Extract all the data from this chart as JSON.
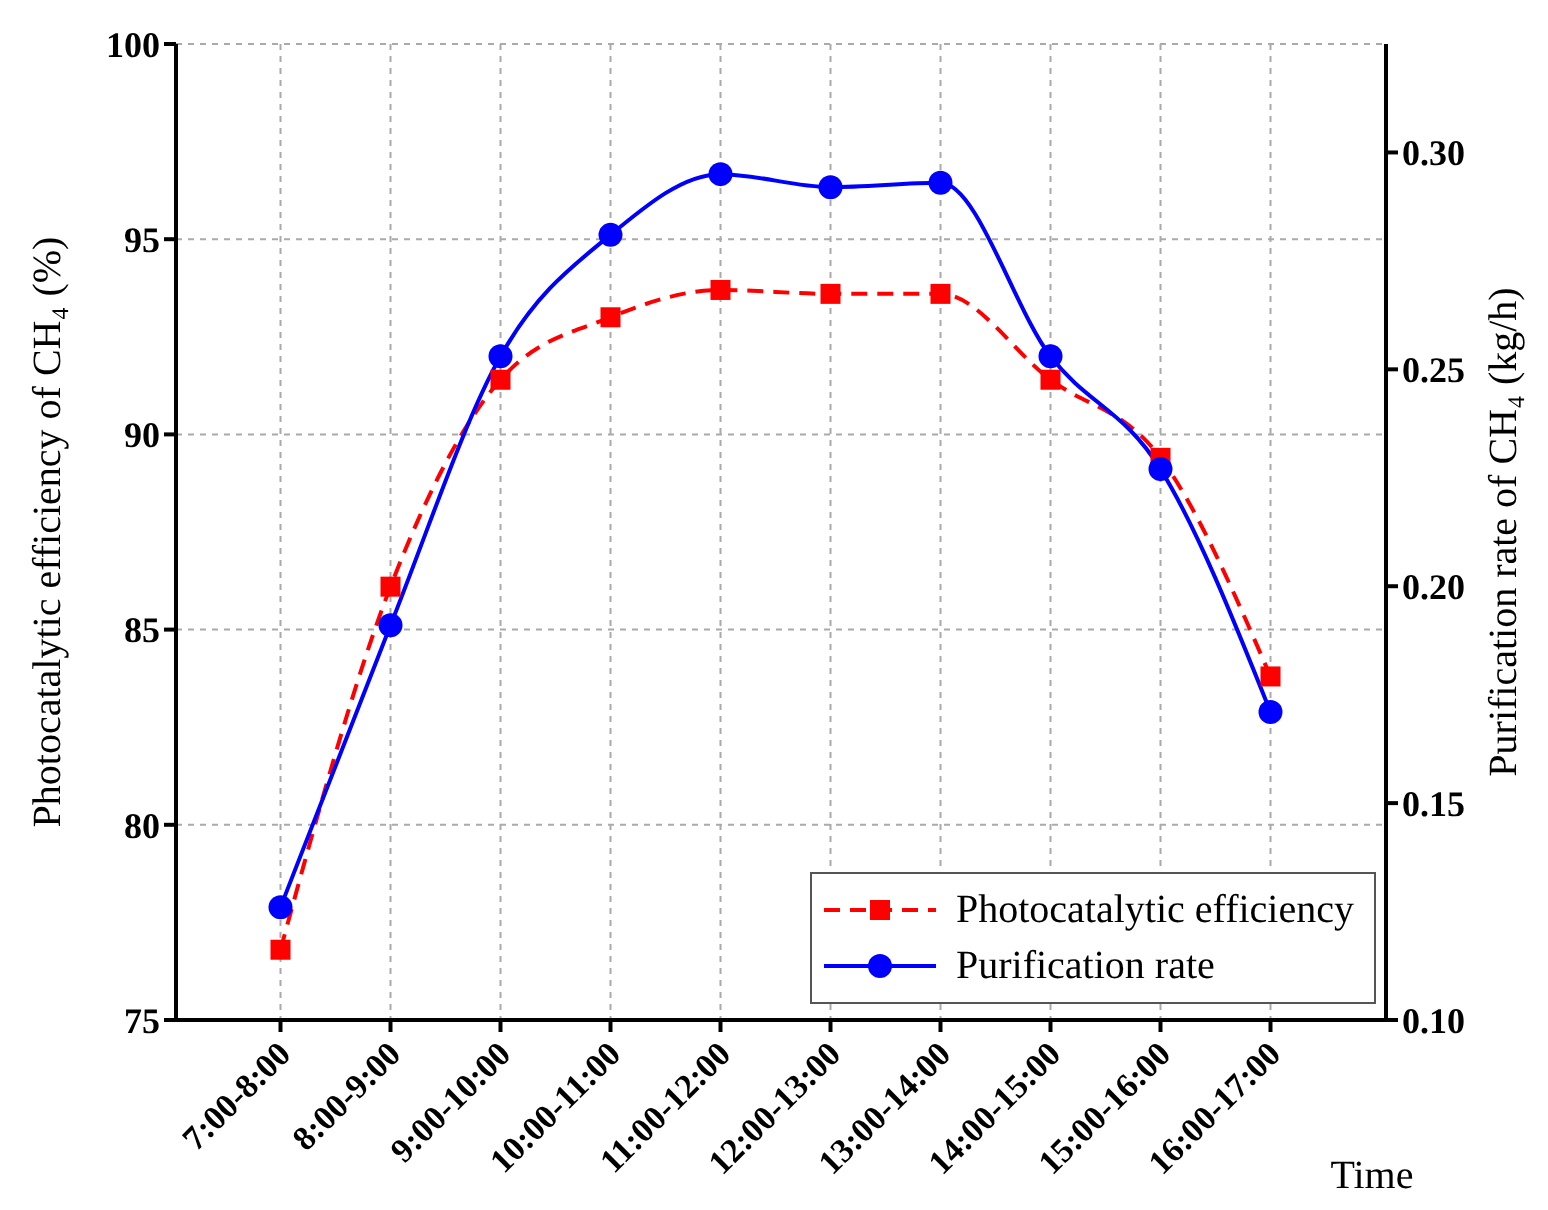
{
  "chart_data": {
    "type": "line",
    "xlabel": "Time",
    "ylabel": "Photocatalytic efficiency of CH₄ (%)",
    "y2label": "Purification rate of CH₄ (kg/h)",
    "categories": [
      "7:00-8:00",
      "8:00-9:00",
      "9:00-10:00",
      "10:00-11:00",
      "11:00-12:00",
      "12:00-13:00",
      "13:00-14:00",
      "14:00-15:00",
      "15:00-16:00",
      "16:00-17:00"
    ],
    "series": [
      {
        "name": "Photocatalytic efficiency",
        "color": "#ff0000",
        "marker": "square",
        "line_style": "dashed",
        "values": [
          76.8,
          86.1,
          91.4,
          93.0,
          93.7,
          93.6,
          93.6,
          91.4,
          89.4,
          83.8
        ]
      },
      {
        "name": "Purification rate",
        "color": "#0000ff",
        "marker": "circle",
        "line_style": "solid",
        "axis": "y2",
        "values": [
          0.126,
          0.191,
          0.253,
          0.281,
          0.295,
          0.292,
          0.293,
          0.253,
          0.227,
          0.171
        ]
      }
    ],
    "ylim": [
      75,
      100
    ],
    "yticks": [
      75,
      80,
      85,
      90,
      95,
      100
    ],
    "y2lim": [
      0.1,
      0.325
    ],
    "y2ticks": [
      {
        "value": 0.1,
        "label": "0.10"
      },
      0.15,
      {
        "value": 0.2,
        "label": "0.20"
      },
      0.25,
      {
        "value": 0.3,
        "label": "0.30"
      }
    ],
    "grid": true,
    "legend": "bottom right"
  }
}
